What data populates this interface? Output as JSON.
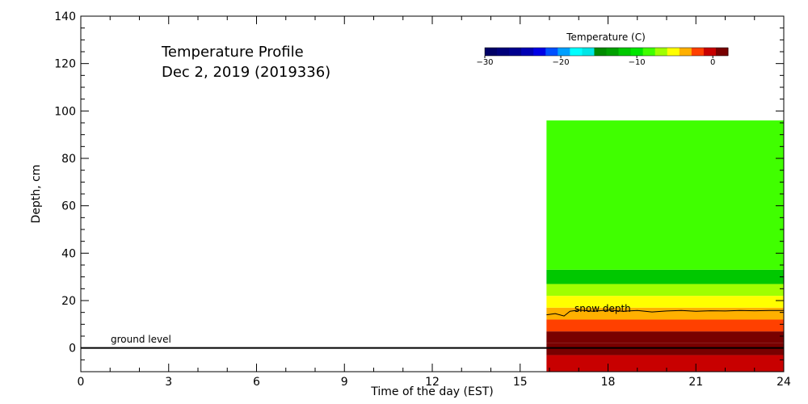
{
  "chart_data": {
    "type": "heatmap",
    "title": "Temperature Profile",
    "subtitle": "Dec  2, 2019 (2019336)",
    "xlabel": "Time of the day (EST)",
    "ylabel": "Depth, cm",
    "xlim": [
      0,
      24
    ],
    "ylim": [
      -10,
      140
    ],
    "x_ticks": [
      0,
      3,
      6,
      9,
      12,
      15,
      18,
      21,
      24
    ],
    "y_ticks": [
      0,
      20,
      40,
      60,
      80,
      100,
      120,
      140
    ],
    "colorbar": {
      "title": "Temperature (C)",
      "range": [
        -30,
        2
      ],
      "ticks": [
        -30,
        -20,
        -10,
        0
      ],
      "colors": [
        "#000066",
        "#00007a",
        "#00008e",
        "#0000b4",
        "#0000e6",
        "#0050ff",
        "#00a0ff",
        "#00ffff",
        "#00e6e6",
        "#008b00",
        "#00a000",
        "#00c800",
        "#00e600",
        "#40ff00",
        "#a0ff00",
        "#ffff00",
        "#ffb000",
        "#ff4000",
        "#c80000",
        "#780000"
      ]
    },
    "temperature_bands": [
      {
        "depth": [
          -10,
          -3
        ],
        "temp": -0.5
      },
      {
        "depth": [
          -3,
          2
        ],
        "temp": 1.0
      },
      {
        "depth": [
          2,
          7
        ],
        "temp": 0.5
      },
      {
        "depth": [
          7,
          12
        ],
        "temp": -1.5
      },
      {
        "depth": [
          12,
          17
        ],
        "temp": -3.0
      },
      {
        "depth": [
          17,
          22
        ],
        "temp": -5.0
      },
      {
        "depth": [
          22,
          27
        ],
        "temp": -7.0
      },
      {
        "depth": [
          27,
          33
        ],
        "temp": -12.0
      },
      {
        "depth": [
          33,
          96
        ],
        "temp": -9.0
      }
    ],
    "data_start_hour": 15.9,
    "snow_depth_line": {
      "x": [
        15.9,
        16.2,
        16.5,
        16.7,
        17.0,
        17.5,
        18.0,
        18.5,
        19.0,
        19.5,
        20.0,
        20.5,
        21.0,
        21.5,
        22.0,
        22.5,
        23.0,
        23.5,
        24.0
      ],
      "y": [
        14,
        14.5,
        13.5,
        15.5,
        16,
        15.5,
        16,
        15.5,
        15.8,
        15.2,
        15.6,
        15.8,
        15.5,
        15.7,
        15.6,
        15.8,
        15.7,
        15.8,
        15.8
      ]
    },
    "annotations": {
      "snow_depth": "snow depth",
      "ground_level": "ground level"
    }
  }
}
